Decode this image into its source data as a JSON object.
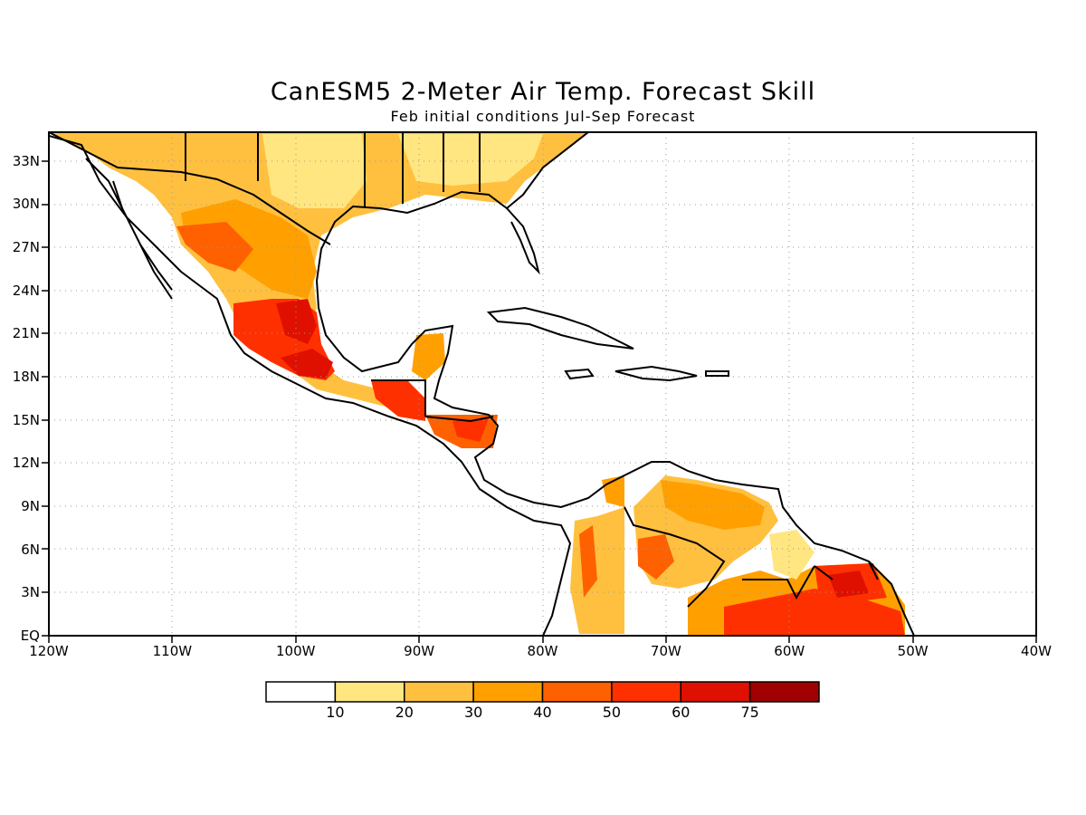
{
  "title": "CanESM5 2-Meter Air Temp. Forecast Skill",
  "subtitle": "Feb initial conditions   Jul-Sep Forecast",
  "map": {
    "lon_range": [
      -120,
      -40
    ],
    "lat_range": [
      0,
      35
    ],
    "grid": true,
    "lat_ticks": [
      {
        "value": 33,
        "label": "33N"
      },
      {
        "value": 30,
        "label": "30N"
      },
      {
        "value": 27,
        "label": "27N"
      },
      {
        "value": 24,
        "label": "24N"
      },
      {
        "value": 21,
        "label": "21N"
      },
      {
        "value": 18,
        "label": "18N"
      },
      {
        "value": 15,
        "label": "15N"
      },
      {
        "value": 12,
        "label": "12N"
      },
      {
        "value": 9,
        "label": "9N"
      },
      {
        "value": 6,
        "label": "6N"
      },
      {
        "value": 3,
        "label": "3N"
      },
      {
        "value": 0,
        "label": "EQ"
      }
    ],
    "lon_ticks": [
      {
        "value": -120,
        "label": "120W"
      },
      {
        "value": -110,
        "label": "110W"
      },
      {
        "value": -100,
        "label": "100W"
      },
      {
        "value": -90,
        "label": "90W"
      },
      {
        "value": -80,
        "label": "80W"
      },
      {
        "value": -70,
        "label": "70W"
      },
      {
        "value": -60,
        "label": "60W"
      },
      {
        "value": -50,
        "label": "50W"
      },
      {
        "value": -40,
        "label": "40W"
      }
    ]
  },
  "colorbar": {
    "colors": [
      "#ffffff",
      "#ffe680",
      "#ffc040",
      "#ffa000",
      "#ff6000",
      "#ff3000",
      "#e01000",
      "#a00000"
    ],
    "labels": [
      "10",
      "20",
      "30",
      "40",
      "50",
      "60",
      "75"
    ]
  }
}
